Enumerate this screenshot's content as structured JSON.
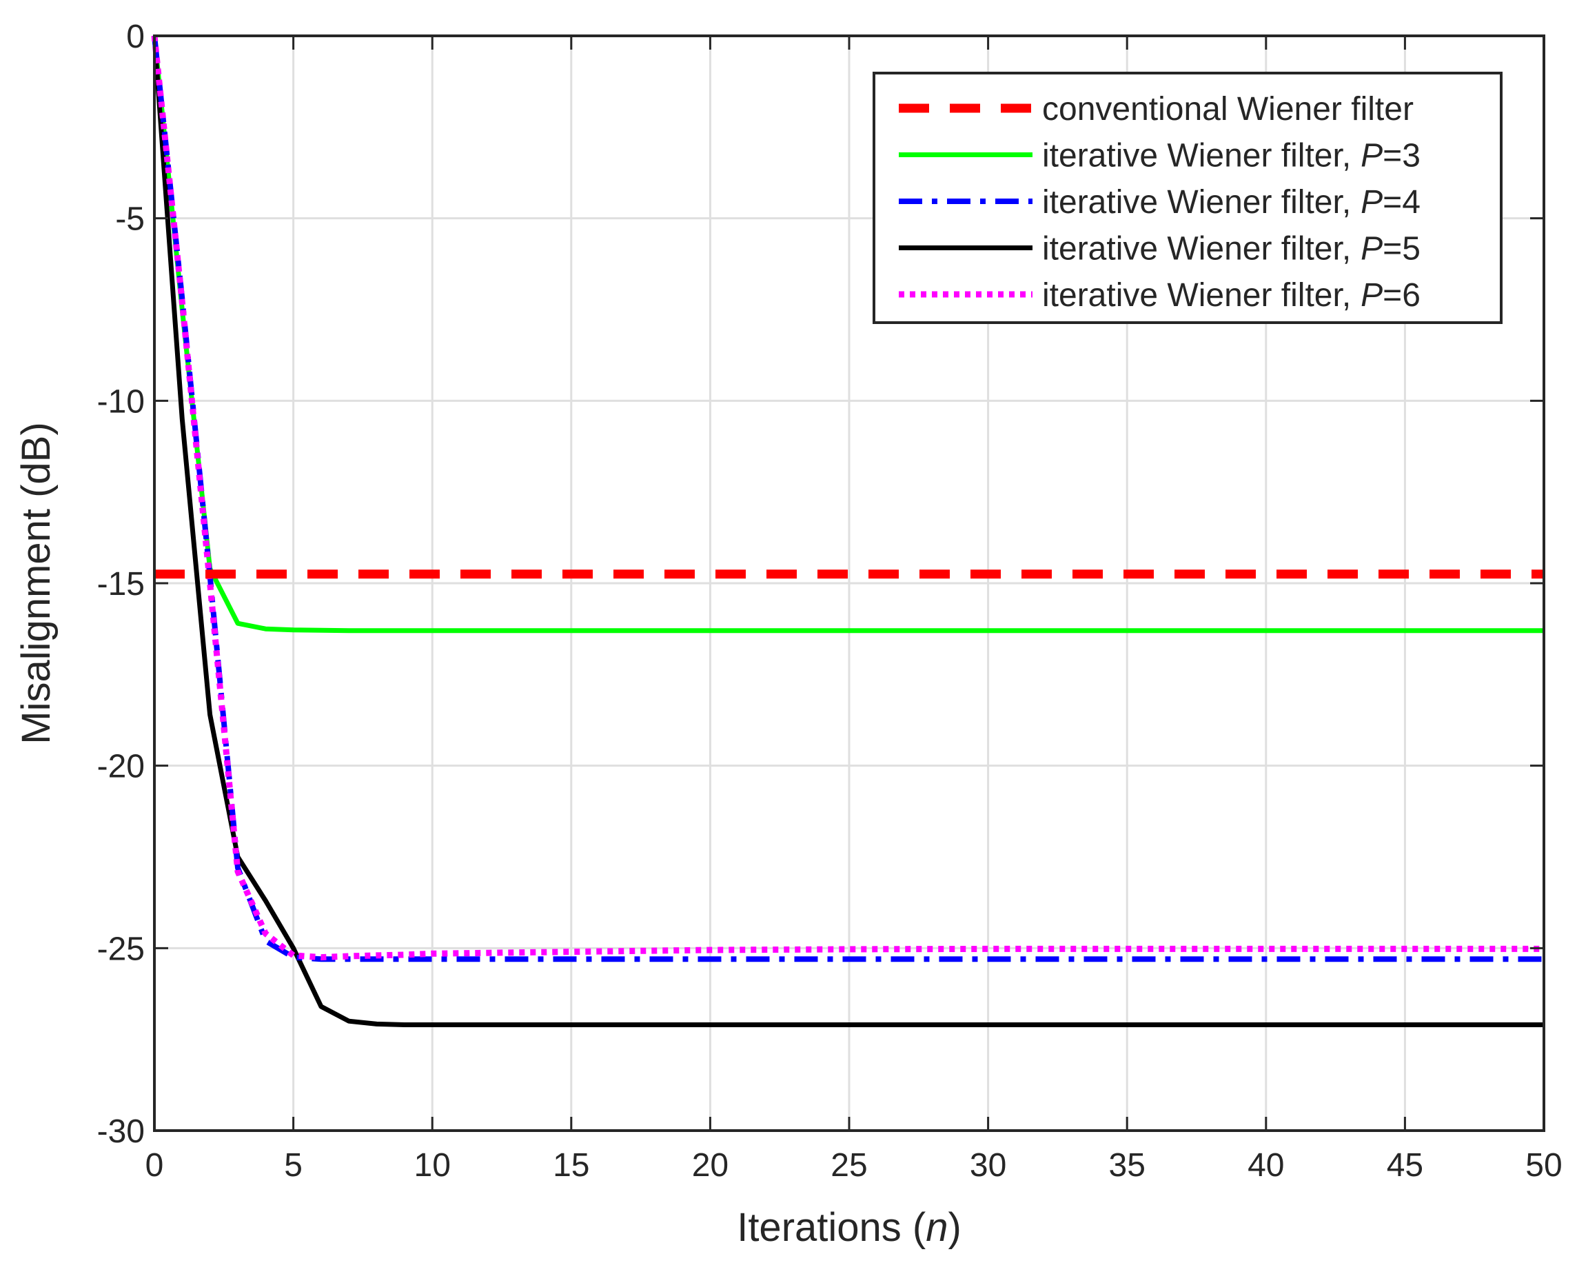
{
  "chart_data": {
    "type": "line",
    "title": "",
    "xlabel_prefix": "Iterations (",
    "xlabel_var": "n",
    "xlabel_suffix": ")",
    "ylabel": "Misalignment (dB)",
    "xlim": [
      0,
      50
    ],
    "ylim": [
      -30,
      0
    ],
    "xticks": [
      0,
      5,
      10,
      15,
      20,
      25,
      30,
      35,
      40,
      45,
      50
    ],
    "yticks": [
      0,
      -5,
      -10,
      -15,
      -20,
      -25,
      -30
    ],
    "grid": true,
    "legend_position": "top-right",
    "series": [
      {
        "name": "conventional Wiener filter",
        "legend_text": "conventional Wiener filter",
        "legend_var": "",
        "legend_suffix": "",
        "color": "#ff0000",
        "style": "dashed",
        "x": [
          0,
          50
        ],
        "y": [
          -14.75,
          -14.75
        ]
      },
      {
        "name": "iterative Wiener filter, P=3",
        "legend_text": "iterative Wiener filter,",
        "legend_var": "P",
        "legend_suffix": "=3",
        "color": "#00ff00",
        "style": "solid",
        "x": [
          0,
          1,
          2,
          3,
          4,
          5,
          6,
          7,
          8,
          9,
          10,
          15,
          20,
          25,
          30,
          35,
          40,
          45,
          50
        ],
        "y": [
          0,
          -7.5,
          -14.6,
          -16.1,
          -16.25,
          -16.28,
          -16.29,
          -16.3,
          -16.3,
          -16.3,
          -16.3,
          -16.3,
          -16.3,
          -16.3,
          -16.3,
          -16.3,
          -16.3,
          -16.3,
          -16.3
        ]
      },
      {
        "name": "iterative Wiener filter, P=4",
        "legend_text": "iterative Wiener filter,",
        "legend_var": "P",
        "legend_suffix": "=4",
        "color": "#0000ff",
        "style": "dashdot",
        "x": [
          0,
          1,
          2,
          3,
          4,
          5,
          6,
          7,
          8,
          9,
          10,
          15,
          20,
          25,
          30,
          35,
          40,
          45,
          50
        ],
        "y": [
          0,
          -7.2,
          -14.8,
          -22.8,
          -24.8,
          -25.25,
          -25.3,
          -25.3,
          -25.3,
          -25.3,
          -25.3,
          -25.3,
          -25.3,
          -25.3,
          -25.3,
          -25.3,
          -25.3,
          -25.3,
          -25.3
        ]
      },
      {
        "name": "iterative Wiener filter, P=5",
        "legend_text": "iterative Wiener filter,",
        "legend_var": "P",
        "legend_suffix": "=5",
        "color": "#000000",
        "style": "solid",
        "x": [
          0,
          1,
          2,
          3,
          4,
          5,
          6,
          7,
          8,
          9,
          10,
          15,
          20,
          25,
          30,
          35,
          40,
          45,
          50
        ],
        "y": [
          0,
          -10.5,
          -18.6,
          -22.5,
          -23.7,
          -25.0,
          -26.6,
          -27.0,
          -27.08,
          -27.1,
          -27.1,
          -27.1,
          -27.1,
          -27.1,
          -27.1,
          -27.1,
          -27.1,
          -27.1,
          -27.1
        ]
      },
      {
        "name": "iterative Wiener filter, P=6",
        "legend_text": "iterative Wiener filter,",
        "legend_var": "P",
        "legend_suffix": "=6",
        "color": "#ff00ff",
        "style": "dotted",
        "x": [
          0,
          1,
          2,
          3,
          4,
          5,
          6,
          7,
          8,
          9,
          10,
          15,
          20,
          25,
          30,
          35,
          40,
          45,
          50
        ],
        "y": [
          0,
          -7.3,
          -15.0,
          -22.9,
          -24.6,
          -25.2,
          -25.25,
          -25.22,
          -25.2,
          -25.18,
          -25.15,
          -25.1,
          -25.05,
          -25.03,
          -25.02,
          -25.02,
          -25.02,
          -25.02,
          -25.02
        ]
      }
    ]
  }
}
